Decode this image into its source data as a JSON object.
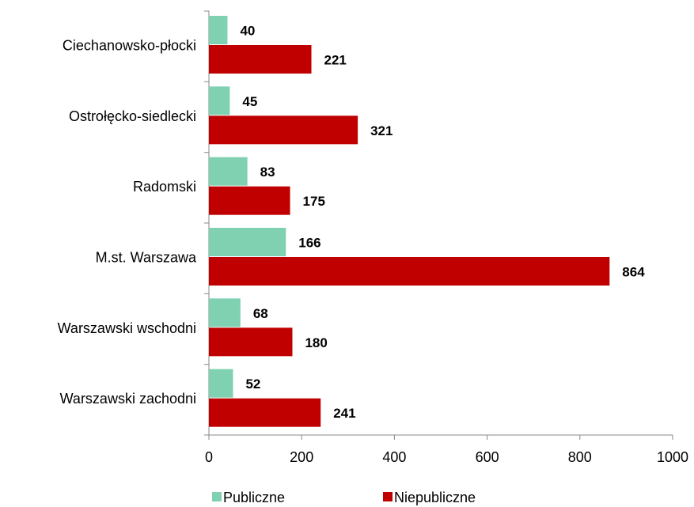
{
  "chart_data": {
    "type": "hbar",
    "categories": [
      "Ciechanowsko-płocki",
      "Ostrołęcko-siedlecki",
      "Radomski",
      "M.st. Warszawa",
      "Warszawski wschodni",
      "Warszawski zachodni"
    ],
    "series": [
      {
        "name": "Publiczne",
        "color": "#7fd1b1",
        "values": [
          40,
          45,
          83,
          166,
          68,
          52
        ]
      },
      {
        "name": "Niepubliczne",
        "color": "#c00000",
        "values": [
          221,
          321,
          175,
          864,
          180,
          241
        ]
      }
    ],
    "xlim": [
      0,
      1000
    ],
    "xticks": [
      0,
      200,
      400,
      600,
      800,
      1000
    ],
    "legend": "bottom"
  }
}
